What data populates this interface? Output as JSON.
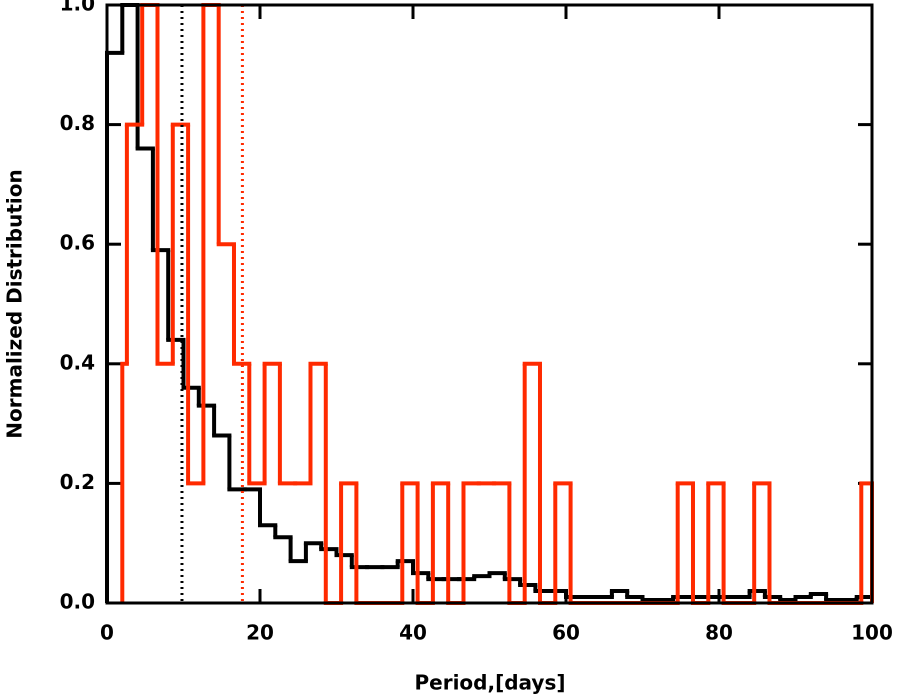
{
  "chart_data": {
    "type": "histogram",
    "xlabel": "Period,[days]",
    "ylabel": "Normalized Distribution",
    "xlim": [
      0,
      100
    ],
    "ylim": [
      0,
      1
    ],
    "xticks": [
      0,
      20,
      40,
      60,
      80,
      100
    ],
    "yticks": [
      {
        "value": 0,
        "label": "0.0"
      },
      0.2,
      0.4,
      0.6,
      0.8,
      {
        "value": 1,
        "label": "1.0"
      }
    ],
    "series": [
      {
        "color": "#000000",
        "bins": [
          0,
          2,
          4,
          6,
          8,
          10,
          12,
          14,
          16,
          18,
          20,
          22,
          24,
          26,
          28,
          30,
          32,
          34,
          36,
          38,
          40,
          42,
          44,
          46,
          48,
          50,
          52,
          54,
          56,
          58,
          60,
          62,
          64,
          66,
          68,
          70,
          72,
          74,
          76,
          78,
          80,
          82,
          84,
          86,
          88,
          90,
          92,
          94,
          96,
          98,
          100
        ],
        "counts": [
          0.92,
          1.0,
          0.76,
          0.59,
          0.44,
          0.36,
          0.33,
          0.28,
          0.19,
          0.19,
          0.13,
          0.11,
          0.07,
          0.1,
          0.09,
          0.08,
          0.06,
          0.06,
          0.06,
          0.07,
          0.05,
          0.04,
          0.04,
          0.04,
          0.045,
          0.05,
          0.04,
          0.03,
          0.02,
          0.02,
          0.01,
          0.01,
          0.01,
          0.02,
          0.01,
          0.005,
          0.005,
          0.01,
          0.01,
          0.01,
          0.01,
          0.01,
          0.02,
          0.01,
          0.005,
          0.01,
          0.015,
          0.005,
          0.005,
          0.01
        ]
      },
      {
        "color": "#ff2a00",
        "bins": [
          2,
          2.6,
          4.6,
          6.6,
          8.6,
          10.6,
          12.6,
          14.6,
          16.6,
          18.6,
          20.6,
          22.6,
          24.6,
          26.6,
          28.6,
          30.6,
          32.6,
          34.6,
          36.6,
          38.6,
          40.6,
          42.6,
          44.6,
          46.6,
          48.6,
          50.6,
          52.6,
          54.6,
          56.6,
          58.6,
          60.6,
          62.6,
          64.6,
          66.6,
          68.6,
          70.6,
          72.6,
          74.6,
          76.6,
          78.6,
          80.6,
          82.6,
          84.6,
          86.6,
          88.6,
          90.6,
          92.6,
          94.6,
          96.6,
          98.6,
          100
        ],
        "counts": [
          0.4,
          0.8,
          1.0,
          0.4,
          0.8,
          0.2,
          1.0,
          0.6,
          0.4,
          0.2,
          0.4,
          0.2,
          0.2,
          0.4,
          0,
          0.2,
          0,
          0,
          0,
          0.2,
          0,
          0.2,
          0,
          0.2,
          0.2,
          0.2,
          0,
          0.4,
          0,
          0.2,
          0,
          0,
          0,
          0,
          0,
          0,
          0,
          0.2,
          0,
          0.2,
          0,
          0,
          0.2,
          0,
          0,
          0,
          0,
          0,
          0,
          0.2
        ]
      }
    ],
    "vlines": [
      {
        "value": 9.8,
        "color": "#000000"
      },
      {
        "value": 17.7,
        "color": "#ff2a00"
      }
    ]
  }
}
